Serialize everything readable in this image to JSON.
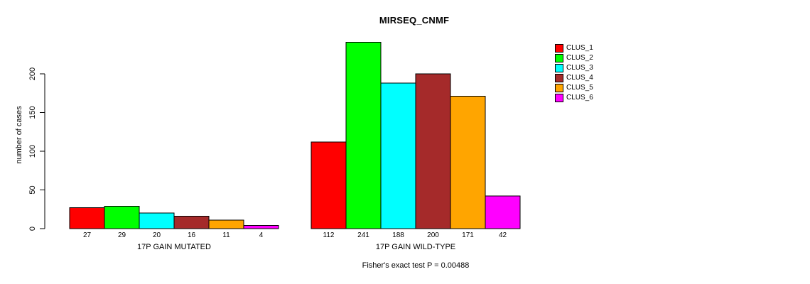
{
  "chart_data": {
    "type": "bar",
    "title": "MIRSEQ_CNMF",
    "ylabel": "number of cases",
    "xlabel": "",
    "ylim": [
      0,
      241
    ],
    "yticks": [
      0,
      50,
      100,
      150,
      200
    ],
    "grid": false,
    "legend_position": "right",
    "background_color": "#FFFFFF",
    "axis_color": "#000000",
    "categories": [
      "17P GAIN MUTATED",
      "17P GAIN WILD-TYPE"
    ],
    "series": [
      {
        "name": "CLUS_1",
        "color": "#FF0000",
        "values": [
          27,
          112
        ]
      },
      {
        "name": "CLUS_2",
        "color": "#00FF00",
        "values": [
          29,
          241
        ]
      },
      {
        "name": "CLUS_3",
        "color": "#00FFFF",
        "values": [
          20,
          188
        ]
      },
      {
        "name": "CLUS_4",
        "color": "#A52A2A",
        "values": [
          16,
          200
        ]
      },
      {
        "name": "CLUS_5",
        "color": "#FFA500",
        "values": [
          11,
          171
        ]
      },
      {
        "name": "CLUS_6",
        "color": "#FF00FF",
        "values": [
          4,
          42
        ]
      }
    ],
    "bar_value_labels_shown": true,
    "footer": "Fisher's exact test P = 0.00488"
  }
}
